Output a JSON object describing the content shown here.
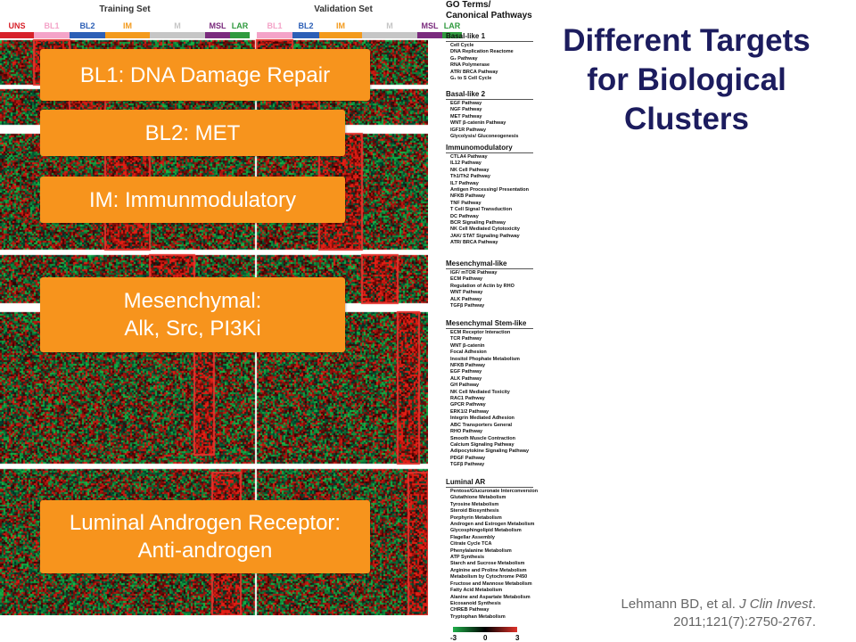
{
  "heatmap": {
    "training_title": "Training Set",
    "validation_title": "Validation Set",
    "training_subtypes": [
      "UNS",
      "BL1",
      "BL2",
      "IM",
      "M",
      "MSL",
      "LAR"
    ],
    "validation_subtypes": [
      "BL1",
      "BL2",
      "IM",
      "M",
      "MSL",
      "LAR"
    ],
    "subtype_colors": {
      "UNS": "#d7212a",
      "BL1": "#f4a3c8",
      "BL2": "#2c5fb6",
      "IM": "#f39a1c",
      "M": "#c6c6c6",
      "MSL": "#7a2b7d",
      "LAR": "#2f9a3e"
    },
    "callouts": [
      {
        "lines": [
          "BL1:  DNA Damage Repair"
        ]
      },
      {
        "lines": [
          "BL2: MET"
        ]
      },
      {
        "lines": [
          "IM: Immunmodulatory"
        ]
      },
      {
        "lines": [
          "Mesenchymal:",
          "Alk, Src, PI3Ki"
        ]
      },
      {
        "lines": [
          "Luminal Androgen Receptor:",
          "Anti-androgen"
        ]
      }
    ],
    "colorbar": {
      "min": "-3",
      "mid": "0",
      "max": "3"
    }
  },
  "legend": {
    "heading_line1": "GO Terms/",
    "heading_line2": "Canonical Pathways",
    "groups": [
      {
        "name": "Basal-like 1",
        "items": [
          "Cell Cycle",
          "DNA Replication Reactome",
          "G₂ Pathway",
          "RNA Polymerase",
          "ATR/ BRCA Pathway",
          "G₁ to S Cell Cycle"
        ]
      },
      {
        "name": "Basal-like 2",
        "items": [
          "EGF Pathway",
          "NGF Pathway",
          "MET Pathway",
          "WNT β-catenin Pathway",
          "IGF1R Pathway",
          "Glycolysis/ Gluconeogenesis"
        ]
      },
      {
        "name": "Immunomodulatory",
        "items": [
          "CTLA4 Pathway",
          "IL12 Pathway",
          "NK Cell Pathway",
          "Th1/Th2 Pathway",
          "IL7 Pathway",
          "Antigen Processing/ Presentation",
          "NFKB Pathway",
          "TNF Pathway",
          "T Cell Signal Transduction",
          "DC Pathway",
          "BCR Signaling Pathway",
          "NK Cell Mediated Cytotoxicity",
          "JAK/ STAT Signaling Pathway",
          "ATR/ BRCA Pathway"
        ]
      },
      {
        "name": "Mesenchymal-like",
        "items": [
          "IGF/ mTOR Pathway",
          "ECM Pathway",
          "Regulation of Actin by RHO",
          "WNT Pathway",
          "ALK Pathway",
          "TGFβ Pathway"
        ]
      },
      {
        "name": "Mesenchymal Stem-like",
        "items": [
          "ECM Receptor Interaction",
          "TCR Pathway",
          "WNT β-catenin",
          "Focal Adhesion",
          "Inositol Phophate Metabolism",
          "NFKB Pathway",
          "EGF Pathway",
          "ALK Pathway",
          "GH Pathway",
          "NK Cell Mediated Toxicity",
          "RAC1 Pathway",
          "GPCR Pathway",
          "ERK1/2 Pathway",
          "Integrin Mediated Adhesion",
          "ABC Transporters General",
          "RHO Pathway",
          "Smooth Muscle Contraction",
          "Calcium Signaling Pathway",
          "Adipocytokine Signaling Pathway",
          "PDGF Pathway",
          "TGFβ Pathway"
        ]
      },
      {
        "name": "Luminal AR",
        "items": [
          "Pentose/Glucuronate Interconversion",
          "Glutathione Metabolism",
          "Tyrosine Metabolism",
          "Steroid Biosynthesis",
          "Porphyrin Metabolism",
          "Androgen and Estrogen Metabolism",
          "Glycosphingolipid Metabolism",
          "Flagellar Assembly",
          "Citrate Cycle TCA",
          "Phenylalanine Metabolism",
          "ATP Synthesis",
          "Starch and Sucrose Metabolism",
          "Arginine and Proline Metabolism",
          "Metabolism by Cytochrome P450",
          "Fructose and Mannose Metabolism",
          "Fatty Acid Metabolism",
          "Alanine and Aspartate Metabolism",
          "Eicosanoid Synthesis",
          "CHREB Pathway",
          "Tryptophan Metabolism"
        ]
      }
    ]
  },
  "title": {
    "line1": "Different Targets",
    "line2": "for Biological",
    "line3": "Clusters"
  },
  "citation": {
    "author": "Lehmann BD, et al. ",
    "journal": "J Clin Invest",
    "rest_line1": ".",
    "line2": "2011;121(7):2750-2767."
  },
  "colors": {
    "callout": "#f7941d",
    "title": "#1c1c5e",
    "heat_up": "#e0322a",
    "heat_down": "#1fae4a",
    "box": "#e5322d"
  }
}
